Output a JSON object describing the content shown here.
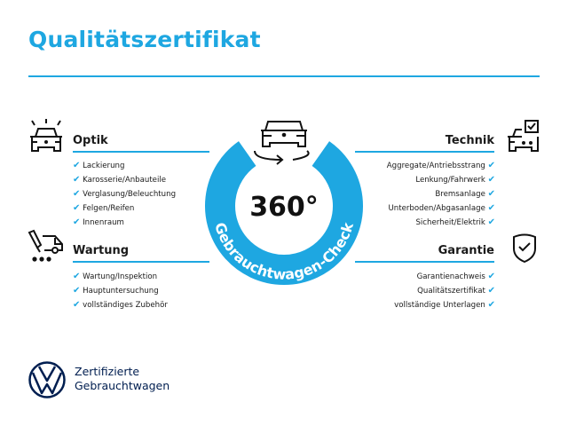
{
  "title": "Qualitätszertifikat",
  "colors": {
    "accent": "#1ea7e1",
    "brand": "#001e50",
    "text": "#1a1a1a"
  },
  "center": {
    "number": "360°",
    "ring_text": "Gebrauchtwagen-Check",
    "icon": "car-rotate-icon"
  },
  "sections": {
    "optik": {
      "title": "Optik",
      "icon": "car-lights-icon",
      "items": [
        "Lackierung",
        "Karosserie/Anbauteile",
        "Verglasung/Beleuchtung",
        "Felgen/Reifen",
        "Innenraum"
      ]
    },
    "wartung": {
      "title": "Wartung",
      "icon": "service-truck-icon",
      "items": [
        "Wartung/Inspektion",
        "Hauptuntersuchung",
        "vollständiges Zubehör"
      ]
    },
    "technik": {
      "title": "Technik",
      "icon": "car-checklist-icon",
      "items": [
        "Aggregate/Antriebsstrang",
        "Lenkung/Fahrwerk",
        "Bremsanlage",
        "Unterboden/Abgasanlage",
        "Sicherheit/Elektrik"
      ]
    },
    "garantie": {
      "title": "Garantie",
      "icon": "shield-check-icon",
      "items": [
        "Garantienachweis",
        "Qualitätszertifikat",
        "vollständige Unterlagen"
      ]
    }
  },
  "check_glyph": "✔",
  "footer": {
    "logo": "VW",
    "line1": "Zertifizierte",
    "line2": "Gebrauchtwagen"
  }
}
